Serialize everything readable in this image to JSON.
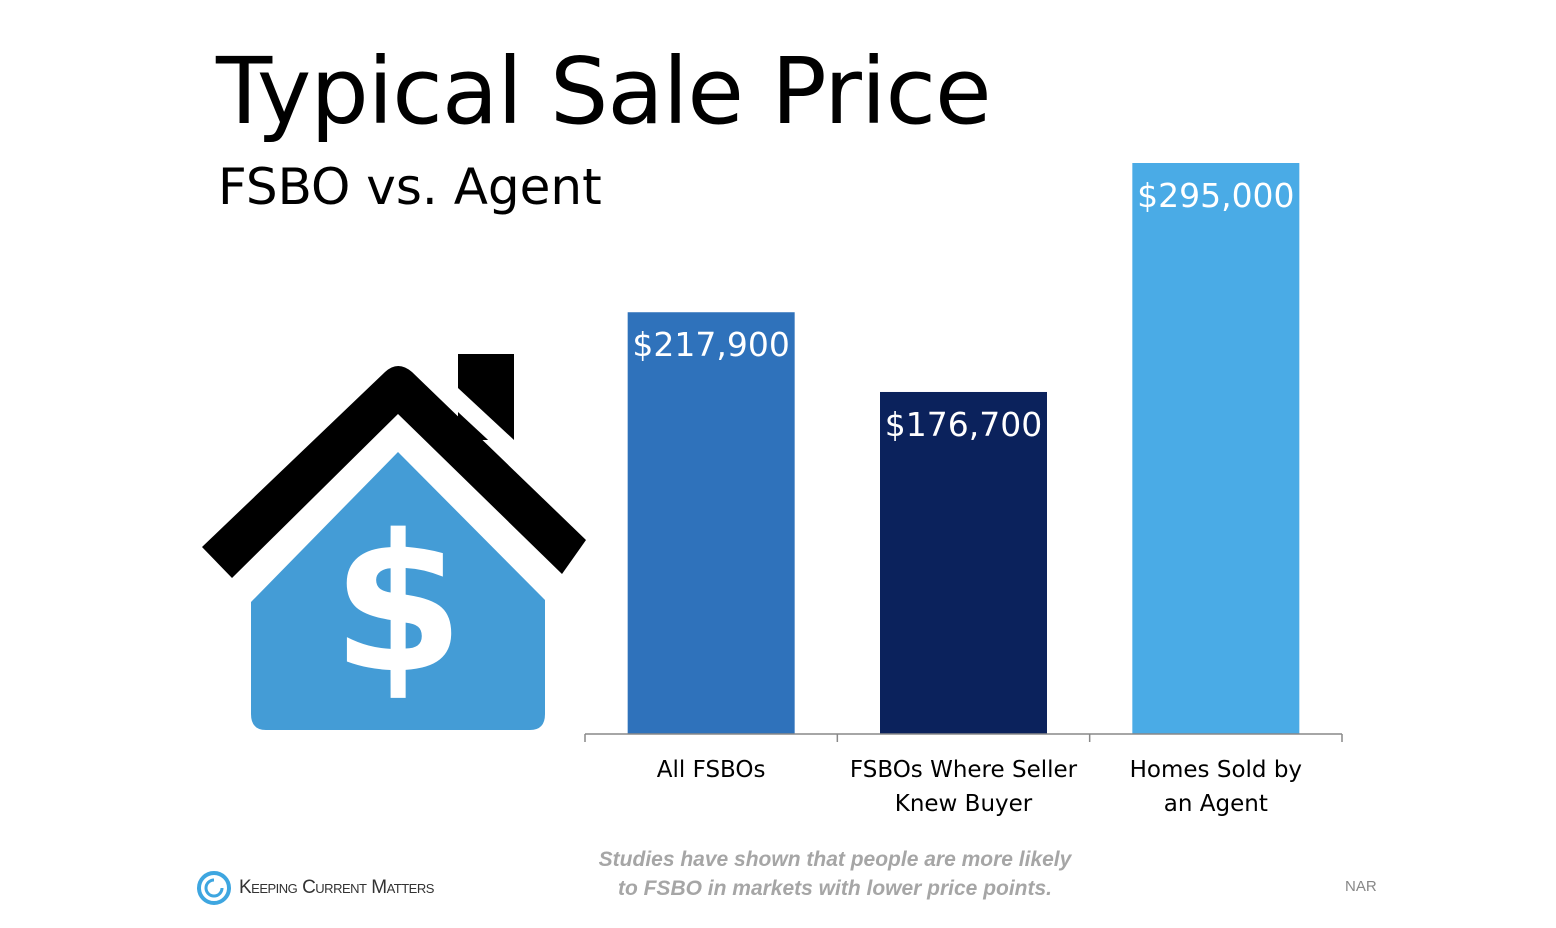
{
  "chart_data": {
    "type": "bar",
    "title": "Typical Sale Price",
    "subtitle": "FSBO vs. Agent",
    "categories": [
      "All FSBOs",
      "FSBOs Where Seller Knew Buyer",
      "Homes Sold by an Agent"
    ],
    "category_lines": [
      [
        "All FSBOs"
      ],
      [
        "FSBOs Where Seller",
        "Knew Buyer"
      ],
      [
        "Homes Sold by",
        "an Agent"
      ]
    ],
    "values": [
      217900,
      176700,
      295000
    ],
    "data_labels": [
      "$217,900",
      "$176,700",
      "$295,000"
    ],
    "colors": [
      "#2f72bb",
      "#0b225c",
      "#4aabe6"
    ],
    "xlabel": "",
    "ylabel": "",
    "ylim": [
      0,
      295000
    ],
    "grid": false
  },
  "footer": {
    "note_line1": "Studies have shown that people are more likely",
    "note_line2": "to FSBO in markets with lower price points.",
    "logo_text": "Keeping Current Matters",
    "source": "NAR"
  }
}
